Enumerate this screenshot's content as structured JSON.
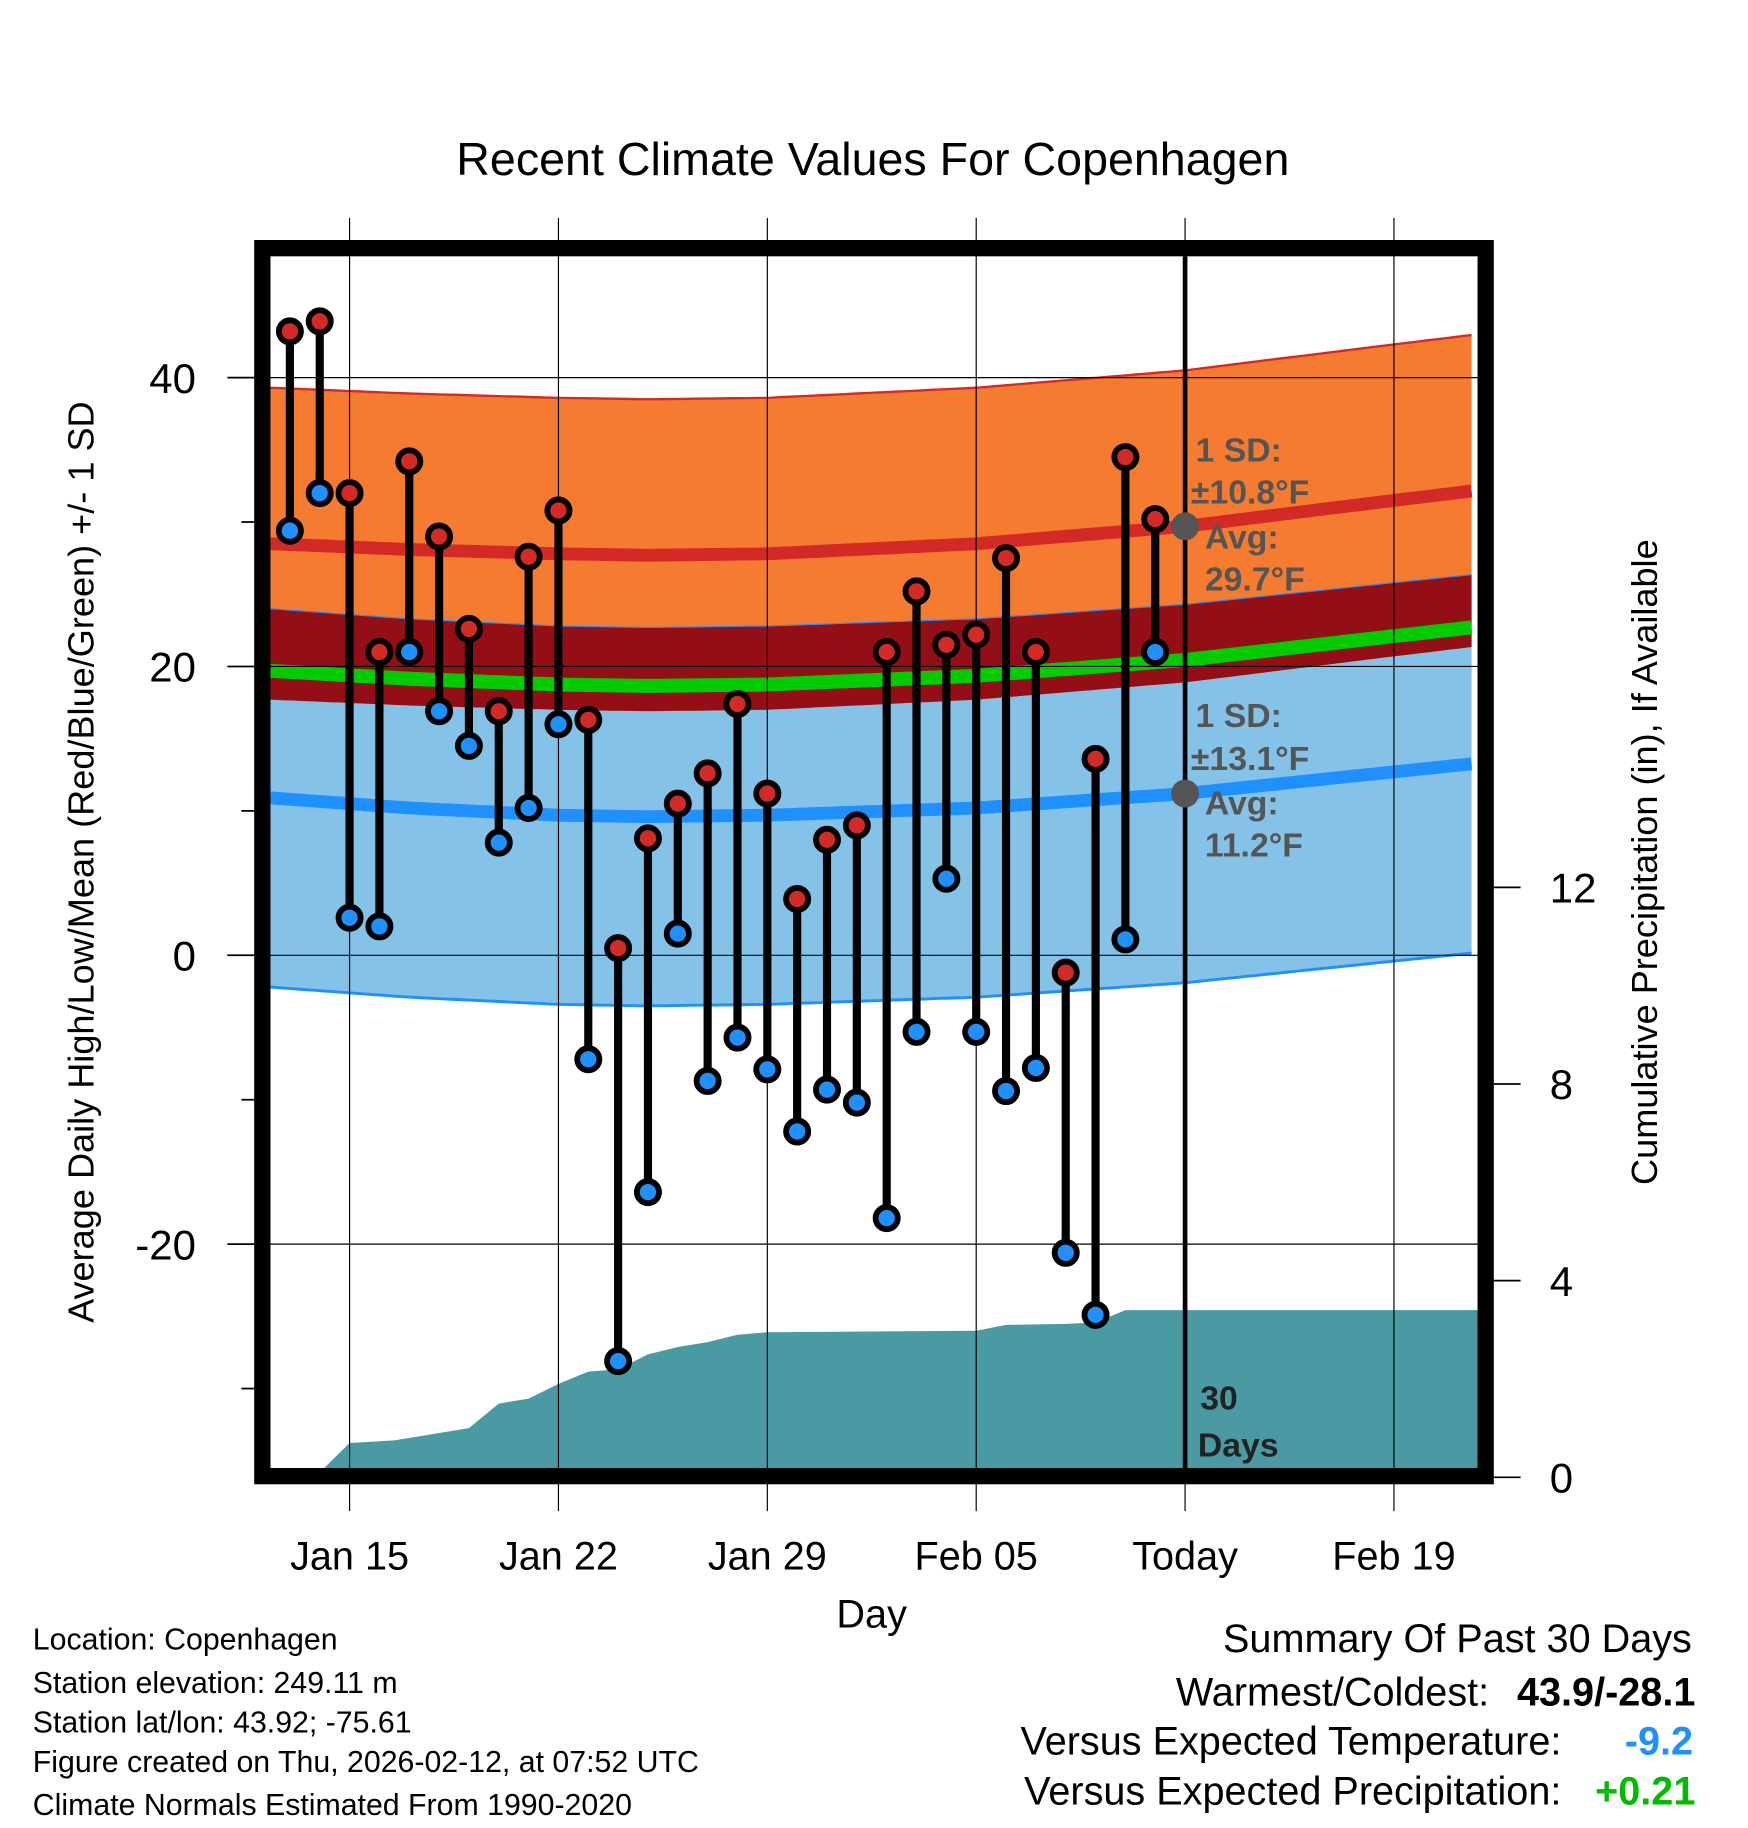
{
  "chart_data": {
    "type": "line",
    "title": "Recent Climate Values For Copenhagen",
    "xlabel": "Day",
    "ylabel": "Average Daily High/Low/Mean (Red/Blue/Green) +/- 1 SD",
    "y2label": "Cumulative Precipitation (in), If Available",
    "ylim": [
      -35.5,
      48.4
    ],
    "y2lim": [
      0,
      24.6
    ],
    "xlim_days_from_jan15": [
      -2.65,
      37.8
    ],
    "yticks": [
      "40",
      "20",
      "0",
      "-20"
    ],
    "ytick_values": [
      40,
      20,
      0,
      -20
    ],
    "yminor_values": [
      30,
      10,
      -10,
      -30
    ],
    "y2ticks": [
      "12",
      "8",
      "4",
      "0"
    ],
    "y2tick_values": [
      12,
      8,
      4,
      0
    ],
    "xticks": [
      "Jan 15",
      "Jan 22",
      "Jan 29",
      "Feb 05",
      "Today",
      "Feb 19"
    ],
    "xtick_days": [
      0,
      7,
      14,
      21,
      28,
      35
    ],
    "today_day": 28,
    "days": [
      -2,
      -1,
      0,
      1,
      2,
      3,
      4,
      5,
      6,
      7,
      8,
      9,
      10,
      11,
      12,
      13,
      14,
      15,
      16,
      17,
      18,
      19,
      20,
      21,
      22,
      23,
      24,
      25,
      26,
      27
    ],
    "highs": [
      43.2,
      43.9,
      32.0,
      21.0,
      34.2,
      29.0,
      22.6,
      16.9,
      27.6,
      30.8,
      16.3,
      0.5,
      8.1,
      10.5,
      12.6,
      17.4,
      11.2,
      3.9,
      8.0,
      9.0,
      21.0,
      25.2,
      21.5,
      22.2,
      27.5,
      21.0,
      -1.2,
      13.6,
      34.5,
      30.2
    ],
    "lows": [
      29.4,
      32.0,
      2.6,
      2.0,
      21.0,
      16.9,
      14.5,
      7.8,
      10.2,
      16.0,
      -7.2,
      -28.1,
      -16.4,
      1.5,
      -8.7,
      -5.7,
      -7.9,
      -12.2,
      -9.3,
      -10.2,
      -18.2,
      -5.3,
      5.3,
      -5.3,
      -9.4,
      -7.8,
      -20.6,
      -24.9,
      1.1,
      21.0
    ],
    "normal_days": [
      -2.65,
      2,
      7,
      10,
      14,
      21,
      28,
      35,
      37.8
    ],
    "normal_high_mean": [
      28.5,
      28.1,
      27.8,
      27.7,
      27.8,
      28.5,
      29.7,
      31.5,
      32.2
    ],
    "normal_high_sd": 10.8,
    "normal_low_mean": [
      10.9,
      10.2,
      9.7,
      9.6,
      9.7,
      10.2,
      11.2,
      12.7,
      13.3
    ],
    "normal_low_sd": 13.1,
    "precip_days": [
      -2.65,
      -1.5,
      -1,
      0,
      1.5,
      4,
      5,
      6,
      7,
      8,
      9,
      10,
      11,
      12,
      13,
      14,
      21,
      22,
      24,
      25,
      26,
      37.8
    ],
    "precip_cum": [
      0,
      0,
      0.1,
      0.7,
      0.75,
      1.0,
      1.5,
      1.6,
      1.9,
      2.15,
      2.2,
      2.5,
      2.65,
      2.75,
      2.9,
      2.95,
      2.98,
      3.1,
      3.12,
      3.15,
      3.4,
      3.4
    ],
    "colors": {
      "high": "#d42a27",
      "low": "#1e90ff",
      "high_band": "#f47b30",
      "low_band": "#85c2e8",
      "overlap": "#940e15",
      "mean": "#00cc00",
      "precip": "#4a9aa4",
      "annot": "#555555"
    },
    "annotations": {
      "high_sd_label": "1 SD:",
      "high_sd_value": "±10.8°F",
      "high_avg_label": "Avg:",
      "high_avg_value": "29.7°F",
      "low_sd_label": "1 SD:",
      "low_sd_value": "±13.1°F",
      "low_avg_label": "Avg:",
      "low_avg_value": "11.2°F",
      "days_count": "30",
      "days_word": "Days"
    }
  },
  "footer": {
    "location": "Location: Copenhagen",
    "elevation": "Station elevation: 249.11 m",
    "latlon": "Station lat/lon: 43.92; -75.61",
    "created": "Figure created on Thu, 2026-02-12, at 07:52 UTC",
    "normals": "Climate Normals Estimated From 1990-2020"
  },
  "summary": {
    "title": "Summary Of Past 30 Days",
    "warm_label": "Warmest/Coldest:",
    "warm_value": "43.9/-28.1",
    "temp_label": "Versus Expected Temperature:",
    "temp_value": "-9.2",
    "precip_label": "Versus Expected Precipitation:",
    "precip_value": "+0.21"
  }
}
